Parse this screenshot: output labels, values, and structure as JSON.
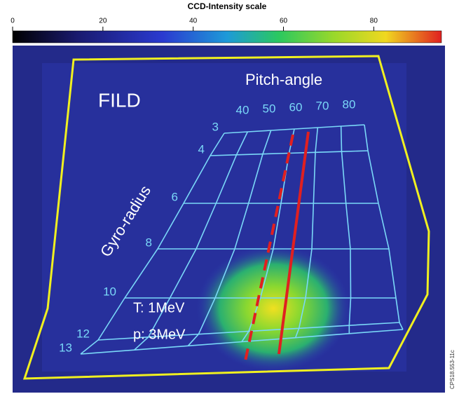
{
  "colorbar": {
    "title": "CCD-Intensity scale",
    "lim": [
      0,
      95
    ],
    "ticks": [
      0,
      20,
      40,
      60,
      80
    ]
  },
  "labels": {
    "instrument": "FILD",
    "pitch_title": "Pitch-angle",
    "gyro_title": "Gyro-radius",
    "pitch": [
      "40",
      "50",
      "60",
      "70",
      "80"
    ],
    "gyro": [
      "3",
      "4",
      "6",
      "8",
      "10",
      "12",
      "13"
    ],
    "triton": "T: 1MeV",
    "proton": "p: 3MeV",
    "figure_id": "CPS18.553-11c"
  }
}
